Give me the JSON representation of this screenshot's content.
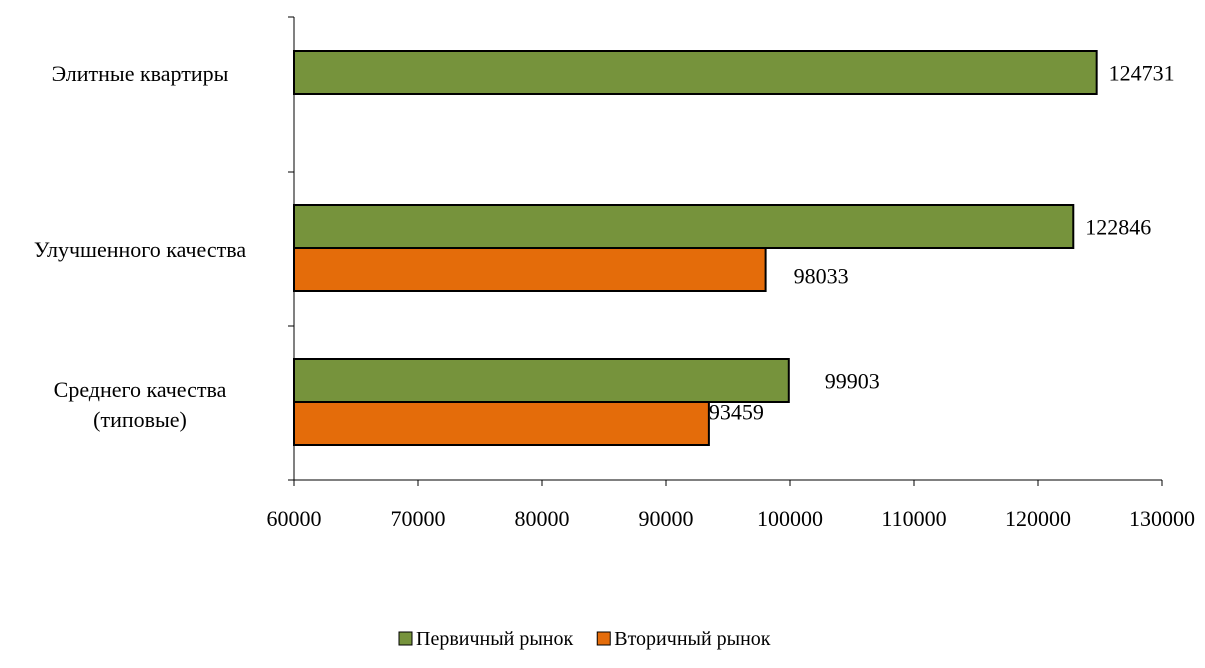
{
  "chart_data": {
    "type": "bar",
    "orientation": "horizontal",
    "categories": [
      [
        "Элитные квартиры"
      ],
      [
        "Улучшенного качества"
      ],
      [
        "Среднего качества",
        "(типовые)"
      ]
    ],
    "series": [
      {
        "name": "Первичный рынок",
        "color": "#76933c",
        "values": [
          124731,
          122846,
          99903
        ]
      },
      {
        "name": "Вторичный рынок",
        "color": "#e46c0a",
        "values": [
          null,
          98033,
          93459
        ]
      }
    ],
    "xlim": [
      60000,
      130000
    ],
    "xticks": [
      "60000",
      "70000",
      "80000",
      "90000",
      "100000",
      "110000",
      "120000",
      "130000"
    ],
    "data_labels": [
      [
        "124731",
        "122846",
        "99903"
      ],
      [
        null,
        "98033",
        "93459"
      ]
    ],
    "grid": false,
    "legend_position": "bottom"
  }
}
